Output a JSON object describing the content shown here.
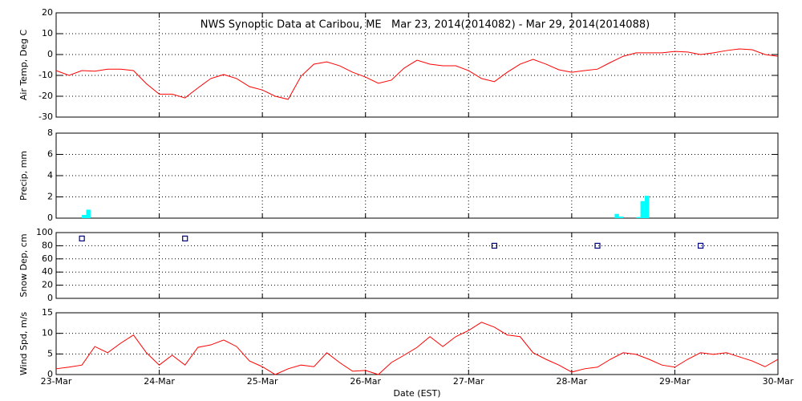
{
  "chart_data": [
    {
      "type": "line",
      "title": "NWS Synoptic Data at Caribou, ME   Mar 23, 2014(2014082) - Mar 29, 2014(2014088)",
      "ylabel": "Air Temp, Deg C",
      "ylim": [
        -30,
        20
      ],
      "yticks": [
        -30,
        -20,
        -10,
        0,
        10,
        20
      ],
      "grid": true,
      "x": [
        0,
        3,
        6,
        9,
        12,
        15,
        18,
        21,
        24,
        27,
        30,
        33,
        36,
        39,
        42,
        45,
        48,
        51,
        54,
        57,
        60,
        63,
        66,
        69,
        72,
        75,
        78,
        81,
        84,
        87,
        90,
        93,
        96,
        99,
        102,
        105,
        108,
        111,
        114,
        117,
        120,
        123,
        126,
        129,
        132,
        135,
        138,
        141,
        144,
        147,
        150,
        153,
        156,
        159,
        162,
        165,
        168
      ],
      "series": [
        {
          "color": "#ff0000",
          "values": [
            -7.7,
            -10,
            -7.7,
            -8,
            -7,
            -7,
            -7.7,
            -14,
            -19,
            -19,
            -20.8,
            -16,
            -11.5,
            -9.6,
            -11.5,
            -15.4,
            -17,
            -20,
            -21.5,
            -10.4,
            -4.6,
            -3.5,
            -5.4,
            -8.5,
            -10.8,
            -13.8,
            -12.3,
            -6.5,
            -2.7,
            -4.6,
            -5.4,
            -5.4,
            -7.7,
            -11.5,
            -13,
            -8.5,
            -4.6,
            -2.3,
            -4.6,
            -7.3,
            -8.5,
            -7.7,
            -7,
            -3.8,
            -0.8,
            0.8,
            0.8,
            0.8,
            1.5,
            1.2,
            0,
            0.8,
            1.9,
            2.7,
            2.3,
            0,
            -0.8
          ]
        }
      ]
    },
    {
      "type": "bar",
      "ylabel": "Precip, mm",
      "ylim": [
        0,
        8
      ],
      "yticks": [
        0,
        2,
        4,
        6,
        8
      ],
      "grid": true,
      "x": [
        6.5,
        7.5,
        130.5,
        131.5,
        135.5,
        136.5,
        137.5
      ],
      "series": [
        {
          "color": "#00ffff",
          "values": [
            0.3,
            0.8,
            0.4,
            0.15,
            0.1,
            1.6,
            2.1
          ]
        }
      ]
    },
    {
      "type": "scatter",
      "ylabel": "Snow Dep, cm",
      "ylim": [
        0,
        100
      ],
      "yticks": [
        0,
        20,
        40,
        60,
        80,
        100
      ],
      "grid": true,
      "x": [
        6,
        30,
        102,
        126,
        150
      ],
      "series": [
        {
          "color": "#000080",
          "values": [
            91,
            91,
            80,
            80,
            80
          ]
        }
      ]
    },
    {
      "type": "line",
      "ylabel": "Wind Spd, m/s",
      "xlabel": "Date (EST)",
      "ylim": [
        0,
        15
      ],
      "yticks": [
        0,
        5,
        10,
        15
      ],
      "grid": true,
      "xlim": [
        0,
        168
      ],
      "xticks": [
        {
          "value": 0,
          "label": "23-Mar"
        },
        {
          "value": 24,
          "label": "24-Mar"
        },
        {
          "value": 48,
          "label": "25-Mar"
        },
        {
          "value": 72,
          "label": "26-Mar"
        },
        {
          "value": 96,
          "label": "27-Mar"
        },
        {
          "value": 120,
          "label": "28-Mar"
        },
        {
          "value": 144,
          "label": "29-Mar"
        },
        {
          "value": 168,
          "label": "30-Mar"
        }
      ],
      "x": [
        0,
        3,
        6,
        9,
        12,
        15,
        18,
        21,
        24,
        27,
        30,
        33,
        36,
        39,
        42,
        45,
        48,
        51,
        54,
        57,
        60,
        63,
        66,
        69,
        72,
        75,
        78,
        81,
        84,
        87,
        90,
        93,
        96,
        99,
        102,
        105,
        108,
        111,
        114,
        117,
        120,
        123,
        126,
        129,
        132,
        135,
        138,
        141,
        144,
        147,
        150,
        153,
        156,
        159,
        162,
        165,
        168
      ],
      "series": [
        {
          "color": "#ff0000",
          "values": [
            1.4,
            1.8,
            2.3,
            6.8,
            5.3,
            7.6,
            9.6,
            5.3,
            2.3,
            4.7,
            2.3,
            6.6,
            7.2,
            8.4,
            6.8,
            3.3,
            1.9,
            0,
            1.4,
            2.3,
            1.9,
            5.3,
            2.9,
            0.8,
            1.0,
            0,
            2.9,
            4.7,
            6.6,
            9.2,
            6.8,
            9.2,
            10.7,
            12.7,
            11.5,
            9.6,
            9.2,
            5.3,
            3.7,
            2.3,
            0.6,
            1.4,
            1.8,
            3.7,
            5.3,
            4.9,
            3.7,
            2.3,
            1.8,
            3.7,
            5.3,
            4.9,
            5.3,
            4.3,
            3.3,
            1.9,
            3.7
          ]
        }
      ]
    }
  ]
}
